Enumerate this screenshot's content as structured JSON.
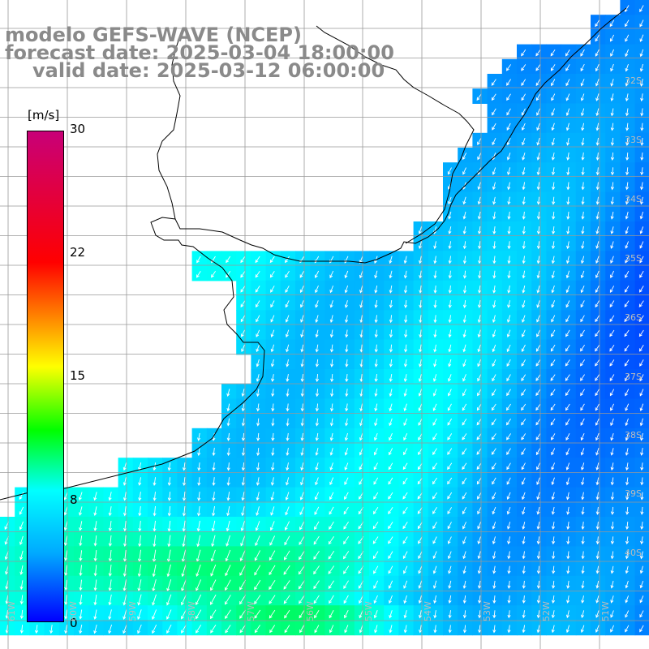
{
  "header": {
    "line1": "modelo GEFS-WAVE (NCEP)",
    "line2": "forecast date: 2025-03-04 18:00:00",
    "line3": "valid date: 2025-03-12 06:00:00"
  },
  "colorbar": {
    "unit": "[m/s]",
    "ticks": [
      {
        "value": 30,
        "label": "30"
      },
      {
        "value": 22,
        "label": "22"
      },
      {
        "value": 15,
        "label": "15"
      },
      {
        "value": 8,
        "label": "8"
      },
      {
        "value": 0,
        "label": "0"
      }
    ],
    "colors": [
      "#0000ff",
      "#00aaff",
      "#00ffff",
      "#00ff00",
      "#ffff00",
      "#ffaa00",
      "#ff0000",
      "#c80078"
    ]
  },
  "map": {
    "variable": "wind speed and direction",
    "lat_labels": [
      "32S",
      "33S",
      "34S",
      "35S",
      "36S",
      "37S",
      "38S",
      "39S",
      "40S"
    ],
    "lon_labels": [
      "61W",
      "60W",
      "59W",
      "58W",
      "57W",
      "56W",
      "55W",
      "54W",
      "53W",
      "52W",
      "51W"
    ],
    "land_color": "#ffffff",
    "arrow_color": "#ffffff",
    "grid_color": "#999999"
  }
}
